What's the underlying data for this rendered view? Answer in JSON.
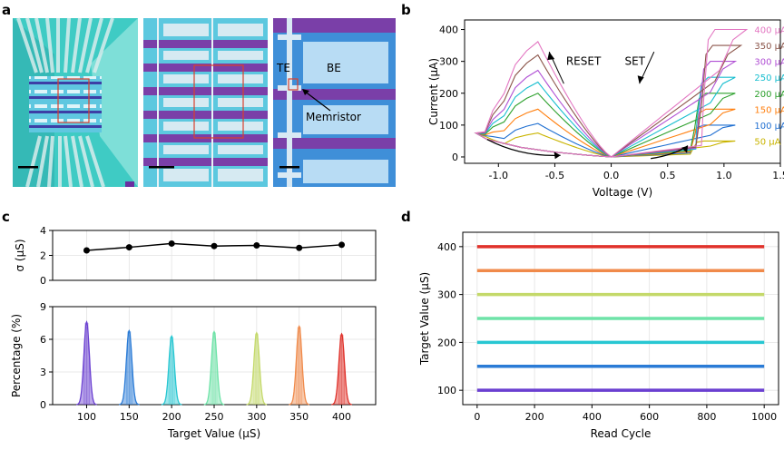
{
  "panels": {
    "a": "a",
    "b": "b",
    "c": "c",
    "d": "d"
  },
  "micrograph": {
    "te_label": "TE",
    "be_label": "BE",
    "memristor_label": "Memristor"
  },
  "colors": {
    "levels": [
      "#6a3fd1",
      "#2a7bd6",
      "#28c7d2",
      "#6fe3a8",
      "#c4d96a",
      "#f08a4a",
      "#e0322b"
    ],
    "iv": [
      "#c9b400",
      "#1f6fd1",
      "#ff7f0e",
      "#2ca02c",
      "#17becf",
      "#b04fd4",
      "#8c564b",
      "#e377c2"
    ],
    "micro_bg": "#3fd2c8",
    "micro_purple": "#7a3fa8",
    "micro_blue": "#2f7ed0"
  },
  "chart_data": [
    {
      "id": "b",
      "type": "line",
      "xlabel": "Voltage (V)",
      "ylabel": "Current (μA)",
      "xlim": [
        -1.3,
        1.5
      ],
      "ylim": [
        -20,
        430
      ],
      "xticks": [
        "-1.0",
        "-0.5",
        "0.0",
        "0.5",
        "1.0",
        "1.5"
      ],
      "xtick_values": [
        -1.0,
        -0.5,
        0.0,
        0.5,
        1.0,
        1.5
      ],
      "yticks": [
        "0",
        "100",
        "200",
        "300",
        "400"
      ],
      "ytick_values": [
        0,
        100,
        200,
        300,
        400
      ],
      "annotations": {
        "reset": "RESET",
        "set": "SET"
      },
      "series": [
        {
          "name": "50 μA",
          "compliance": 50,
          "peak": 75,
          "onset": 0.72,
          "xmax": 1.1
        },
        {
          "name": "100 μA",
          "compliance": 100,
          "peak": 105,
          "onset": 0.72,
          "xmax": 1.1
        },
        {
          "name": "150 μA",
          "compliance": 150,
          "peak": 150,
          "onset": 0.74,
          "xmax": 1.1
        },
        {
          "name": "200 μA",
          "compliance": 200,
          "peak": 200,
          "onset": 0.74,
          "xmax": 1.1
        },
        {
          "name": "250 μA",
          "compliance": 250,
          "peak": 235,
          "onset": 0.76,
          "xmax": 1.1
        },
        {
          "name": "300 μA",
          "compliance": 300,
          "peak": 272,
          "onset": 0.78,
          "xmax": 1.1
        },
        {
          "name": "350 μA",
          "compliance": 350,
          "peak": 320,
          "onset": 0.8,
          "xmax": 1.15
        },
        {
          "name": "400 μA",
          "compliance": 400,
          "peak": 362,
          "onset": 0.82,
          "xmax": 1.2
        }
      ]
    },
    {
      "id": "c-top",
      "type": "line",
      "ylabel": "σ (μS)",
      "ylim": [
        0,
        4
      ],
      "yticks": [
        "0",
        "2",
        "4"
      ],
      "ytick_values": [
        0,
        2,
        4
      ],
      "x": [
        100,
        150,
        200,
        250,
        300,
        350,
        400
      ],
      "values": [
        2.4,
        2.65,
        2.95,
        2.75,
        2.8,
        2.6,
        2.85
      ]
    },
    {
      "id": "c-bottom",
      "type": "area",
      "xlabel": "Target Value (μS)",
      "ylabel": "Percentage (%)",
      "xlim": [
        60,
        440
      ],
      "ylim": [
        0,
        9
      ],
      "xticks": [
        "100",
        "150",
        "200",
        "250",
        "300",
        "350",
        "400"
      ],
      "xtick_values": [
        100,
        150,
        200,
        250,
        300,
        350,
        400
      ],
      "yticks": [
        "0",
        "3",
        "6",
        "9"
      ],
      "ytick_values": [
        0,
        3,
        6,
        9
      ],
      "series": [
        {
          "name": "100",
          "center": 100,
          "peak": 7.6
        },
        {
          "name": "150",
          "center": 150,
          "peak": 6.8
        },
        {
          "name": "200",
          "center": 200,
          "peak": 6.3
        },
        {
          "name": "250",
          "center": 250,
          "peak": 6.7
        },
        {
          "name": "300",
          "center": 300,
          "peak": 6.6
        },
        {
          "name": "350",
          "center": 350,
          "peak": 7.2
        },
        {
          "name": "400",
          "center": 400,
          "peak": 6.5
        }
      ]
    },
    {
      "id": "d",
      "type": "line",
      "xlabel": "Read Cycle",
      "ylabel": "Target Value (μS)",
      "xlim": [
        -50,
        1050
      ],
      "ylim": [
        70,
        430
      ],
      "xticks": [
        "0",
        "200",
        "400",
        "600",
        "800",
        "1000"
      ],
      "xtick_values": [
        0,
        200,
        400,
        600,
        800,
        1000
      ],
      "yticks": [
        "100",
        "200",
        "300",
        "400"
      ],
      "ytick_values": [
        100,
        200,
        300,
        400
      ],
      "series": [
        {
          "name": "100",
          "value": 100
        },
        {
          "name": "150",
          "value": 150
        },
        {
          "name": "200",
          "value": 200
        },
        {
          "name": "250",
          "value": 250
        },
        {
          "name": "300",
          "value": 300
        },
        {
          "name": "350",
          "value": 350
        },
        {
          "name": "400",
          "value": 400
        }
      ]
    }
  ]
}
